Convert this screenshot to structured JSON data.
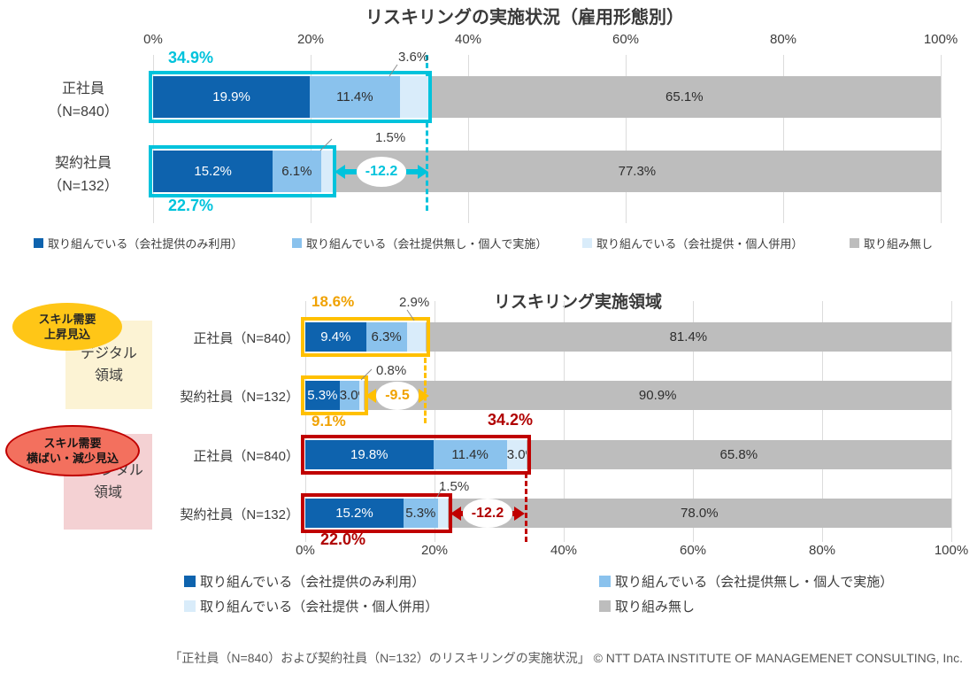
{
  "colors": {
    "series": [
      "#0E63AE",
      "#8AC2ED",
      "#D9ECFA",
      "#BDBDBD"
    ],
    "cyan_accent": "#00C3DC",
    "gold_accent": "#FFC000",
    "gold_text": "#F0A202",
    "red_accent": "#C00000",
    "red_text": "#B00000",
    "grid": "#DCDCDC"
  },
  "chart_data": [
    {
      "type": "bar",
      "stacked": true,
      "orientation": "horizontal",
      "title": "リスキリングの実施状況（雇用形態別）",
      "unit": "%",
      "xlim": [
        0,
        100
      ],
      "axis_ticks": [
        "0%",
        "20%",
        "40%",
        "60%",
        "80%",
        "100%"
      ],
      "series": [
        "取り組んでいる（会社提供のみ利用）",
        "取り組んでいる（会社提供無し・個人で実施）",
        "取り組んでいる（会社提供・個人併用）",
        "取り組み無し"
      ],
      "legend": [
        "取り組んでいる（会社提供のみ利用）",
        "取り組んでいる（会社提供無し・個人で実施）",
        "取り組んでいる（会社提供・個人併用）",
        "取り組み無し"
      ],
      "rows": [
        {
          "category": "正社員（N=840）",
          "label_lines": [
            "正社員",
            "（N=840）"
          ],
          "values": [
            19.9,
            11.4,
            3.6,
            65.1
          ],
          "segment_labels": [
            "19.9%",
            "11.4%",
            null,
            "65.1%"
          ],
          "engaged_total": "34.9%",
          "small_segment_callout": "3.6%"
        },
        {
          "category": "契約社員（N=132）",
          "label_lines": [
            "契約社員",
            "（N=132）"
          ],
          "values": [
            15.2,
            6.1,
            1.5,
            77.3
          ],
          "segment_labels": [
            "15.2%",
            "6.1%",
            null,
            "77.3%"
          ],
          "engaged_total": "22.7%",
          "small_segment_callout": "1.5%"
        }
      ],
      "difference_label": "-12.2"
    },
    {
      "type": "bar",
      "stacked": true,
      "orientation": "horizontal",
      "title": "リスキリング実施領域",
      "unit": "%",
      "xlim": [
        0,
        100
      ],
      "axis_ticks": [
        "0%",
        "20%",
        "40%",
        "60%",
        "80%",
        "100%"
      ],
      "series": [
        "取り組んでいる（会社提供のみ利用）",
        "取り組んでいる（会社提供無し・個人で実施）",
        "取り組んでいる（会社提供・個人併用）",
        "取り組み無し"
      ],
      "legend": [
        "取り組んでいる（会社提供のみ利用）",
        "取り組んでいる（会社提供無し・個人で実施）",
        "取り組んでいる（会社提供・個人併用）",
        "取り組み無し"
      ],
      "groups": [
        {
          "badge_line1": "スキル需要",
          "badge_line2": "上昇見込",
          "area_line1": "デジタル",
          "area_line2": "領域"
        },
        {
          "badge_line1": "スキル需要",
          "badge_line2": "横ばい・減少見込",
          "area_line1": "非デジタル",
          "area_line2": "領域"
        }
      ],
      "rows": [
        {
          "category": "正社員（N=840）",
          "label": "正社員（N=840）",
          "values": [
            9.4,
            6.3,
            2.9,
            81.4
          ],
          "segment_labels": [
            "9.4%",
            "6.3%",
            null,
            "81.4%"
          ],
          "engaged_total": "18.6%",
          "small_segment_callout": "2.9%"
        },
        {
          "category": "契約社員（N=132）",
          "label": "契約社員（N=132）",
          "values": [
            5.3,
            3.0,
            0.8,
            90.9
          ],
          "segment_labels": [
            "5.3%",
            "3.0%",
            null,
            "90.9%"
          ],
          "engaged_total": "9.1%",
          "small_segment_callout": "0.8%",
          "difference_label": "-9.5"
        },
        {
          "category": "正社員（N=840）",
          "label": "正社員（N=840）",
          "values": [
            19.8,
            11.4,
            3.0,
            65.8
          ],
          "segment_labels": [
            "19.8%",
            "11.4%",
            "3.0%",
            "65.8%"
          ],
          "engaged_total": "34.2%",
          "small_segment_callout": null
        },
        {
          "category": "契約社員（N=132）",
          "label": "契約社員（N=132）",
          "values": [
            15.2,
            5.3,
            1.5,
            78.0
          ],
          "segment_labels": [
            "15.2%",
            "5.3%",
            null,
            "78.0%"
          ],
          "engaged_total": "22.0%",
          "small_segment_callout": "1.5%",
          "difference_label": "-12.2"
        }
      ]
    }
  ],
  "footer": "「正社員（N=840）および契約社員（N=132）のリスキリングの実施状況」 © NTT DATA INSTITUTE OF MANAGEMENET CONSULTING, Inc."
}
